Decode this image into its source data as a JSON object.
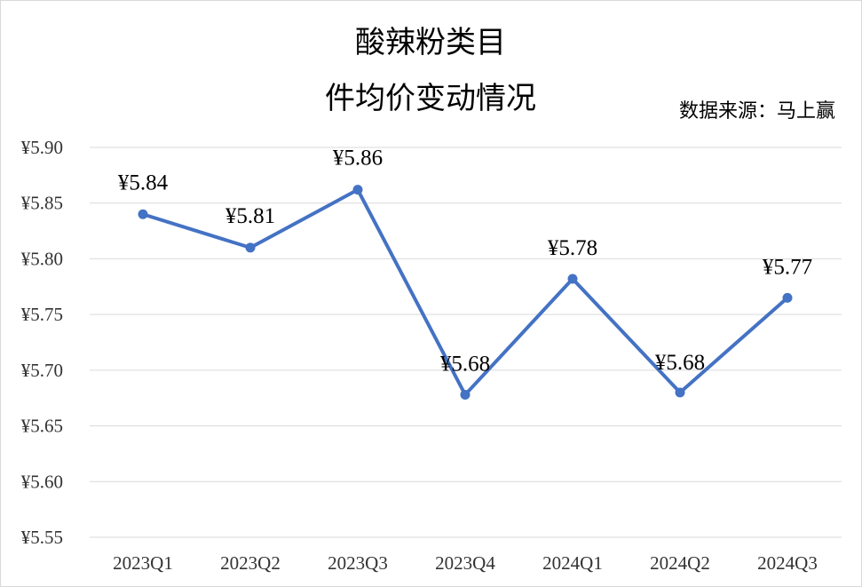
{
  "chart_data": {
    "type": "line",
    "title_lines": [
      "酸辣粉类目",
      "件均价变动情况"
    ],
    "source": "数据来源：马上赢",
    "categories": [
      "2023Q1",
      "2023Q2",
      "2023Q3",
      "2023Q4",
      "2024Q1",
      "2024Q2",
      "2024Q3"
    ],
    "series": [
      {
        "values": [
          5.84,
          5.81,
          5.862,
          5.678,
          5.782,
          5.68,
          5.765
        ],
        "data_labels": [
          "¥5.84",
          "¥5.81",
          "¥5.86",
          "¥5.68",
          "¥5.78",
          "¥5.68",
          "¥5.77"
        ],
        "color": "#4472c4"
      }
    ],
    "ylim": [
      5.55,
      5.9
    ],
    "yticks": [
      5.9,
      5.85,
      5.8,
      5.75,
      5.7,
      5.65,
      5.6,
      5.55
    ],
    "ytick_labels": [
      "¥5.90",
      "¥5.85",
      "¥5.80",
      "¥5.75",
      "¥5.70",
      "¥5.65",
      "¥5.60",
      "¥5.55"
    ],
    "grid": true,
    "legend": "none"
  }
}
